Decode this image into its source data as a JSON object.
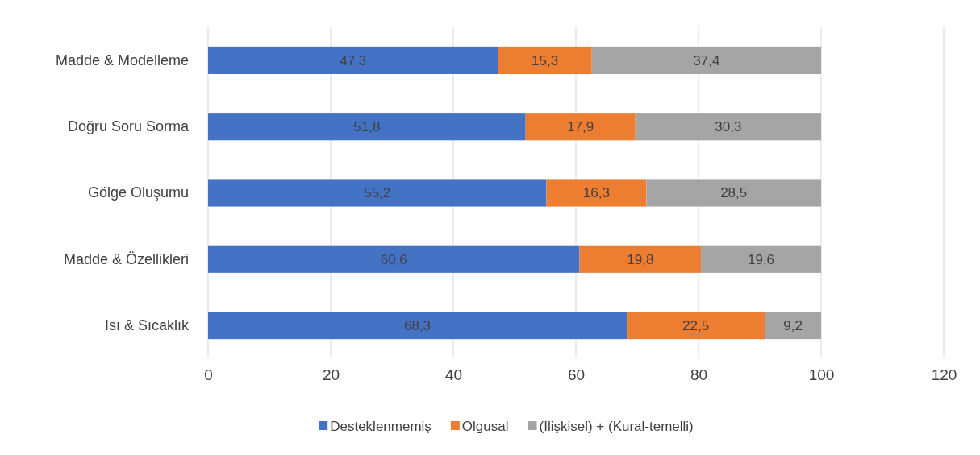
{
  "chart_data": {
    "type": "bar",
    "orientation": "horizontal",
    "stacked": true,
    "categories": [
      "Madde & Modelleme",
      "Doğru Soru Sorma",
      "Gölge Oluşumu",
      "Madde & Özellikleri",
      "Isı & Sıcaklık"
    ],
    "series": [
      {
        "name": "Desteklenmemiş",
        "color": "#4472c4",
        "values": [
          47.3,
          51.8,
          55.2,
          60.6,
          68.3
        ],
        "value_labels": [
          "47,3",
          "51,8",
          "55,2",
          "60,6",
          "68,3"
        ]
      },
      {
        "name": "Olgusal",
        "color": "#ed7d31",
        "values": [
          15.3,
          17.9,
          16.3,
          19.8,
          22.5
        ],
        "value_labels": [
          "15,3",
          "17,9",
          "16,3",
          "19,8",
          "22,5"
        ]
      },
      {
        "name": "(İlişkisel) + (Kural-temelli)",
        "color": "#a5a5a5",
        "values": [
          37.4,
          30.3,
          28.5,
          19.6,
          9.2
        ],
        "value_labels": [
          "37,4",
          "30,3",
          "28,5",
          "19,6",
          "9,2"
        ]
      }
    ],
    "xlim": [
      0,
      120
    ],
    "xticks": [
      0,
      20,
      40,
      60,
      80,
      100,
      120
    ],
    "grid": "x",
    "legend": "bottom"
  }
}
